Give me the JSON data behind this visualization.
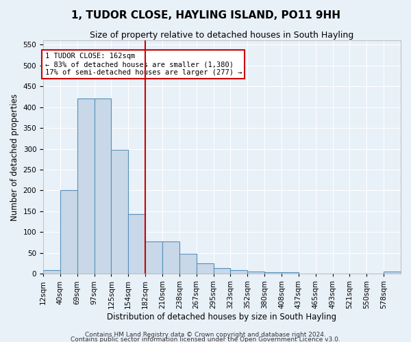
{
  "title": "1, TUDOR CLOSE, HAYLING ISLAND, PO11 9HH",
  "subtitle": "Size of property relative to detached houses in South Hayling",
  "xlabel": "Distribution of detached houses by size in South Hayling",
  "ylabel": "Number of detached properties",
  "bin_labels": [
    "12sqm",
    "40sqm",
    "69sqm",
    "97sqm",
    "125sqm",
    "154sqm",
    "182sqm",
    "210sqm",
    "238sqm",
    "267sqm",
    "295sqm",
    "323sqm",
    "352sqm",
    "380sqm",
    "408sqm",
    "437sqm",
    "465sqm",
    "493sqm",
    "521sqm",
    "550sqm",
    "578sqm"
  ],
  "bar_values": [
    8,
    200,
    420,
    420,
    297,
    143,
    77,
    77,
    48,
    25,
    13,
    9,
    5,
    4,
    3,
    0,
    0,
    0,
    0,
    0,
    5
  ],
  "bar_color": "#c8d8e8",
  "bar_edge_color": "#5590bb",
  "property_bin_index": 5,
  "vline_color": "#cc0000",
  "annotation_text": "1 TUDOR CLOSE: 162sqm\n← 83% of detached houses are smaller (1,380)\n17% of semi-detached houses are larger (277) →",
  "annotation_box_color": "#ffffff",
  "annotation_box_edge": "#cc0000",
  "ylim": [
    0,
    560
  ],
  "yticks": [
    0,
    50,
    100,
    150,
    200,
    250,
    300,
    350,
    400,
    450,
    500,
    550
  ],
  "footer1": "Contains HM Land Registry data © Crown copyright and database right 2024.",
  "footer2": "Contains public sector information licensed under the Open Government Licence v3.0.",
  "background_color": "#e8f0f8",
  "grid_color": "#ffffff",
  "title_fontsize": 11,
  "subtitle_fontsize": 9,
  "axis_label_fontsize": 8.5,
  "tick_fontsize": 7.5,
  "footer_fontsize": 6.5
}
